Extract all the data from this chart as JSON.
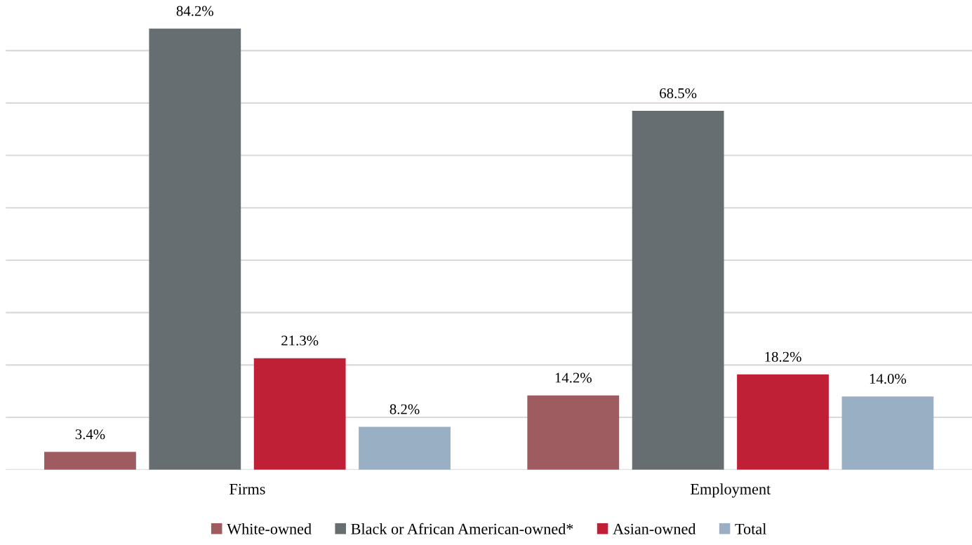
{
  "chart_data": {
    "type": "bar",
    "categories": [
      "Firms",
      "Employment"
    ],
    "series": [
      {
        "name": "White-owned",
        "color": "#9e5b60",
        "values": [
          3.4,
          14.2
        ],
        "value_labels": [
          "3.4%",
          "14.2%"
        ]
      },
      {
        "name": "Black or African American-owned*",
        "color": "#666e71",
        "values": [
          84.2,
          68.5
        ],
        "value_labels": [
          "84.2%",
          "68.5%"
        ]
      },
      {
        "name": "Asian-owned",
        "color": "#c02035",
        "values": [
          21.3,
          18.2
        ],
        "value_labels": [
          "21.3%",
          "18.2%"
        ]
      },
      {
        "name": "Total",
        "color": "#98afc4",
        "values": [
          8.2,
          14.0
        ],
        "value_labels": [
          "8.2%",
          "14.0%"
        ]
      }
    ],
    "tick_labels": "x",
    "grid": "y",
    "legend": "bottom"
  }
}
